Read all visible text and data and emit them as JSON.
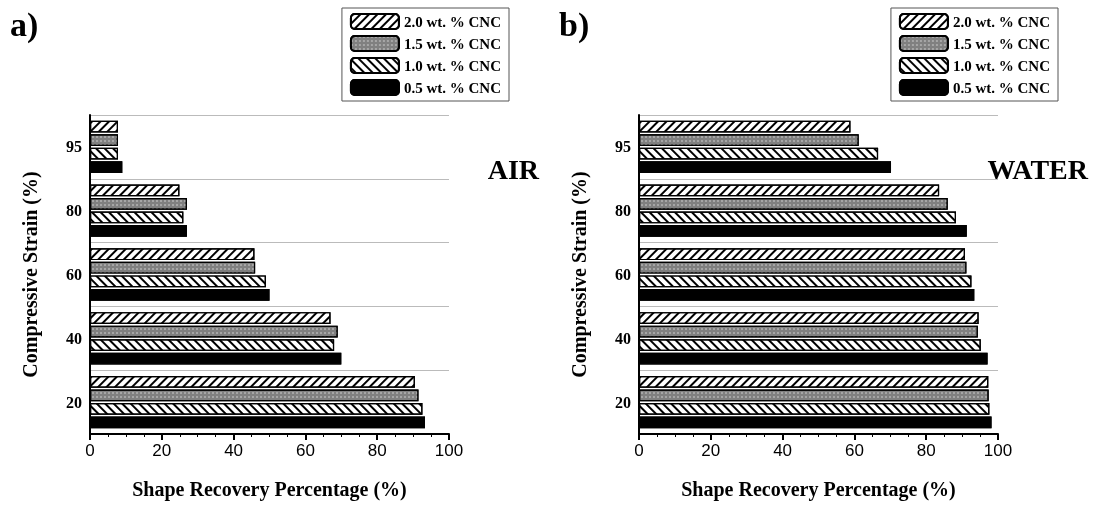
{
  "chart_data": [
    {
      "type": "bar",
      "orientation": "horizontal",
      "title": "a)",
      "xlabel": "Shape Recovery Percentage (%)",
      "ylabel": "Compressive Strain (%)",
      "annotations": [
        "AIR"
      ],
      "categories": [
        "95",
        "80",
        "60",
        "40",
        "20"
      ],
      "xlim": [
        0,
        100
      ],
      "xticks": [
        0,
        20,
        40,
        60,
        80,
        100
      ],
      "grid": "y",
      "legend": "top right",
      "series": [
        {
          "name": "2.0 wt. % CNC",
          "color": "#ffffff",
          "values": [
            7.8,
            24.9,
            45.8,
            67,
            90.5
          ]
        },
        {
          "name": "1.5 wt. % CNC",
          "color": "#808080",
          "values": [
            7.8,
            27,
            46,
            69,
            91.5
          ]
        },
        {
          "name": "1.0 wt. % CNC",
          "color": "#ffffff",
          "values": [
            7.8,
            26,
            49,
            68,
            92.6
          ]
        },
        {
          "name": "0.5 wt. % CNC",
          "color": "#000000",
          "values": [
            9,
            27,
            50,
            70,
            93.3
          ]
        }
      ]
    },
    {
      "type": "bar",
      "orientation": "horizontal",
      "title": "b)",
      "xlabel": "Shape Recovery Percentage (%)",
      "ylabel": "Compressive Strain (%)",
      "annotations": [
        "WATER"
      ],
      "categories": [
        "95",
        "80",
        "60",
        "40",
        "20"
      ],
      "xlim": [
        0,
        100
      ],
      "xticks": [
        0,
        20,
        40,
        60,
        80,
        100
      ],
      "grid": "y",
      "legend": "top right",
      "series": [
        {
          "name": "2.0 wt. % CNC",
          "color": "#ffffff",
          "values": [
            58.9,
            83.6,
            90.8,
            94.6,
            97.3
          ]
        },
        {
          "name": "1.5 wt. % CNC",
          "color": "#808080",
          "values": [
            61.2,
            86,
            91.2,
            94.4,
            97.4
          ]
        },
        {
          "name": "1.0 wt. % CNC",
          "color": "#ffffff",
          "values": [
            66.6,
            88.3,
            92.6,
            95.2,
            97.6
          ]
        },
        {
          "name": "0.5 wt. % CNC",
          "color": "#000000",
          "values": [
            70.2,
            91.3,
            93.4,
            97.1,
            98.2
          ]
        }
      ]
    }
  ]
}
